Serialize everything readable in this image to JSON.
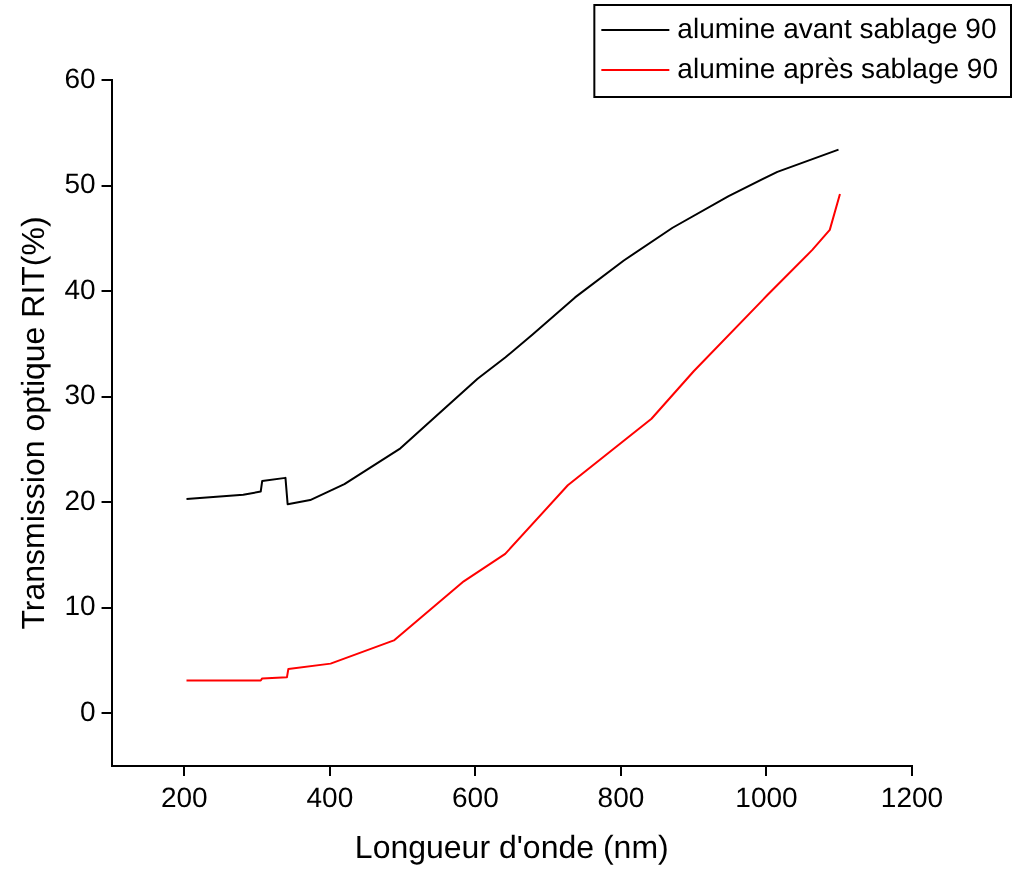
{
  "chart_data": {
    "type": "line",
    "xlabel": "Longueur d'onde (nm)",
    "ylabel": "Transmission optique RIT(%)",
    "xlim": [
      100,
      1200
    ],
    "xticks": [
      200,
      400,
      600,
      800,
      1000,
      1200
    ],
    "ylim": [
      -5,
      60
    ],
    "yticks": [
      0,
      10,
      20,
      30,
      40,
      50,
      60
    ],
    "grid": false,
    "legend": "top right",
    "marker": "none",
    "line_style": "solid",
    "series": [
      {
        "name": "alumine avant sablage 90",
        "color": "#000000",
        "x": [
          203,
          281,
          305,
          307,
          339,
          342,
          373,
          420,
          497,
          545,
          603,
          641,
          679,
          737,
          804,
          871,
          948,
          1015,
          1099
        ],
        "values": [
          20.3,
          20.7,
          21.0,
          22.0,
          22.3,
          19.8,
          20.2,
          21.7,
          25.1,
          28.1,
          31.7,
          33.7,
          35.9,
          39.4,
          42.9,
          46.0,
          49.0,
          51.3,
          53.4
        ]
      },
      {
        "name": "alumine après sablage 90",
        "color": "#ff0000",
        "x": [
          203,
          305,
          307,
          341,
          343,
          401,
          488,
          584,
          641,
          727,
          842,
          900,
          1001,
          1063,
          1087,
          1101
        ],
        "values": [
          3.1,
          3.1,
          3.3,
          3.4,
          4.2,
          4.7,
          6.9,
          12.5,
          15.1,
          21.6,
          27.9,
          32.4,
          39.6,
          43.9,
          45.8,
          49.2
        ]
      }
    ]
  }
}
